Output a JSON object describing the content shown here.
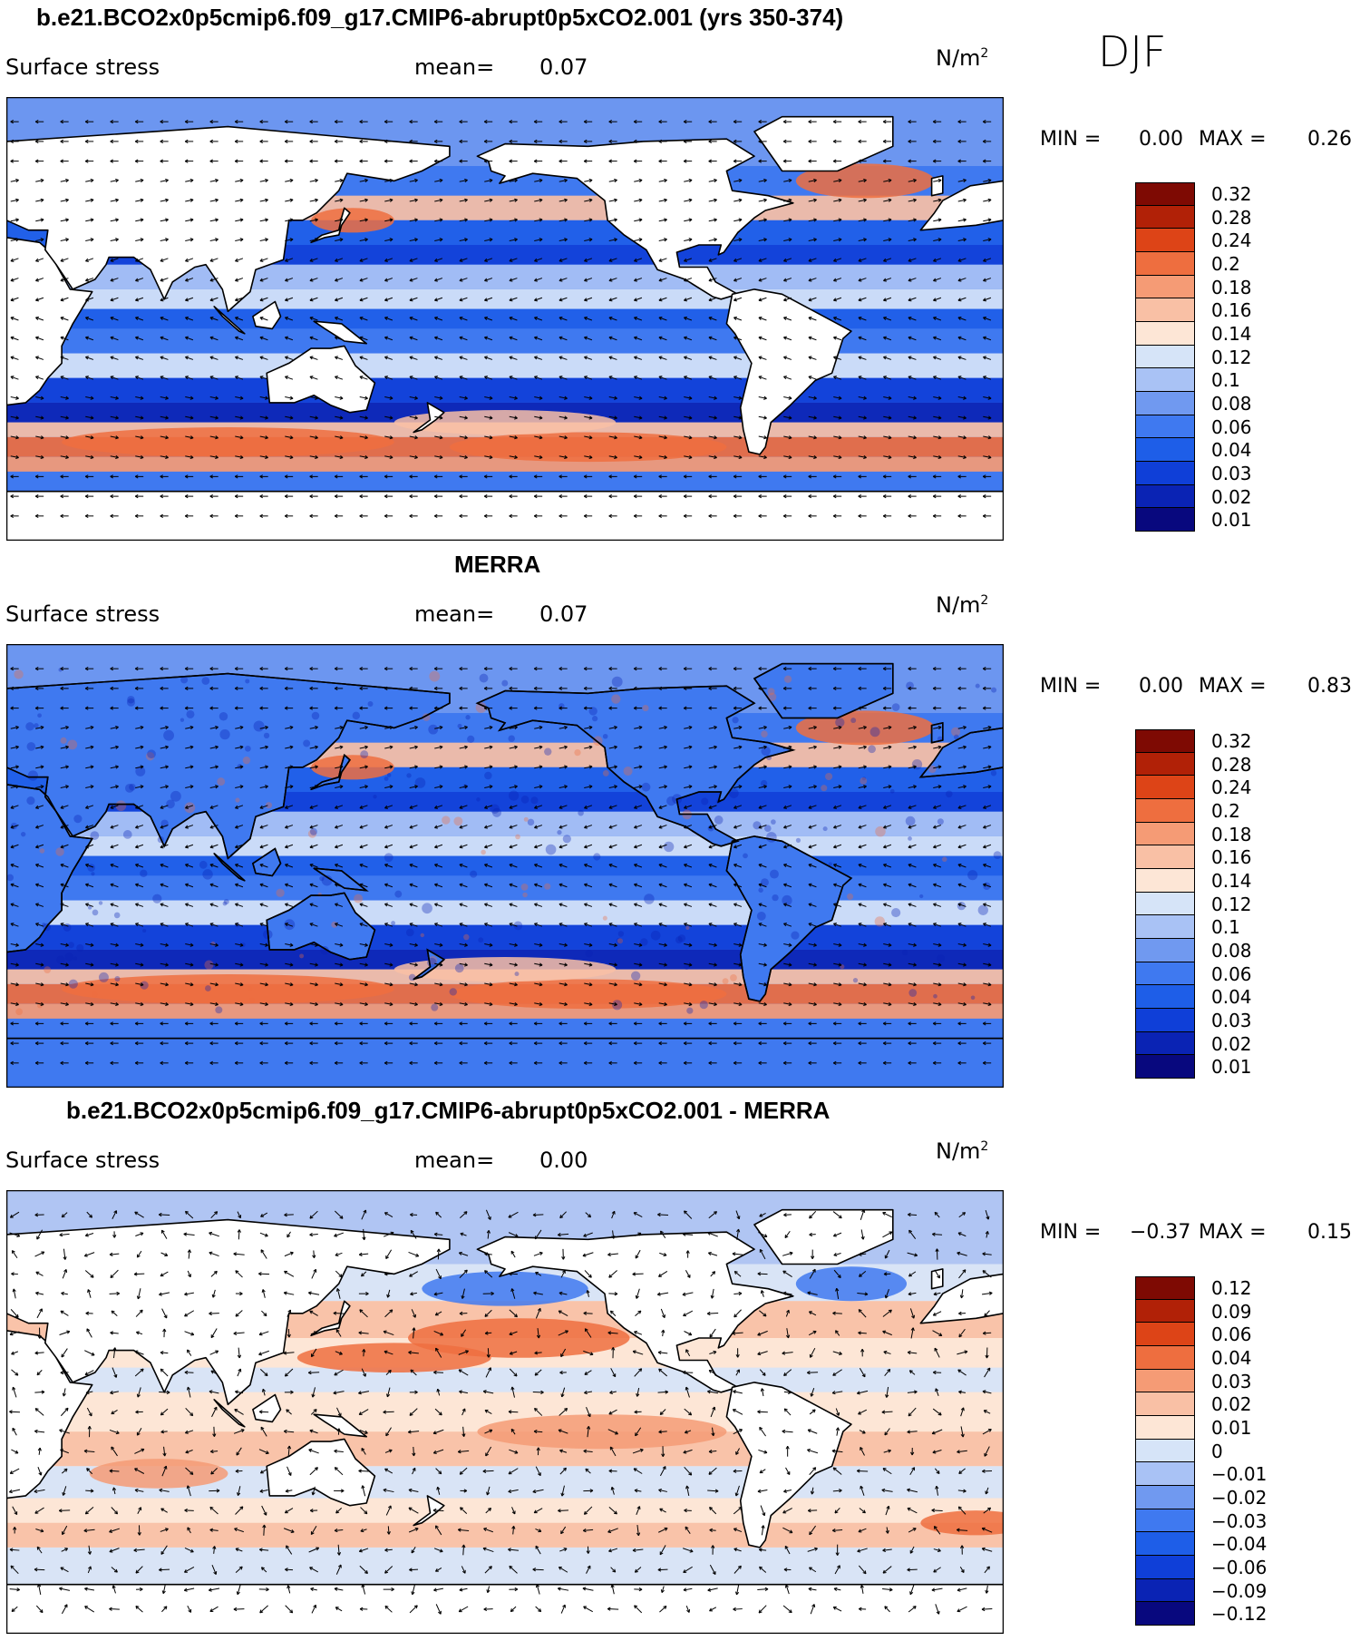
{
  "season": "DJF",
  "colors": {
    "levels": [
      "#08087e",
      "#0a23b4",
      "#0f3fd8",
      "#1e5ee8",
      "#3f79f0",
      "#7099f0",
      "#a9c2f5",
      "#d6e4f8",
      "#fde6d6",
      "#f9c0a5",
      "#f59b75",
      "#ee6e3f",
      "#dd4417",
      "#b12107",
      "#7e0a03"
    ],
    "land": "#ffffff",
    "coast": "#000000"
  },
  "panels": [
    {
      "title": "b.e21.BCO2x0p5cmip6.f09_g17.CMIP6-abrupt0p5xCO2.001 (yrs 350-374)",
      "variable": "Surface stress",
      "mean_label": "mean=",
      "mean_value": "0.07",
      "units": "N/m",
      "units_exp": "2",
      "min_label": "MIN =",
      "min_value": "0.00",
      "max_label": "MAX =",
      "max_value": "0.26"
    },
    {
      "title": "MERRA",
      "variable": "Surface stress",
      "mean_label": "mean=",
      "mean_value": "0.07",
      "units": "N/m",
      "units_exp": "2",
      "min_label": "MIN =",
      "min_value": "0.00",
      "max_label": "MAX =",
      "max_value": "0.83"
    },
    {
      "title": "b.e21.BCO2x0p5cmip6.f09_g17.CMIP6-abrupt0p5xCO2.001 - MERRA",
      "variable": "Surface stress",
      "mean_label": "mean=",
      "mean_value": "0.00",
      "units": "N/m",
      "units_exp": "2",
      "min_label": "MIN =",
      "min_value": "−0.37",
      "max_label": "MAX =",
      "max_value": "0.15"
    }
  ],
  "chart_data": [
    {
      "type": "heatmap",
      "title": "b.e21.BCO2x0p5cmip6.f09_g17.CMIP6-abrupt0p5xCO2.001 (yrs 350-374)",
      "variable": "Surface stress",
      "units": "N/m^2",
      "mean": 0.07,
      "min": 0.0,
      "max": 0.26,
      "levels": [
        0.01,
        0.02,
        0.03,
        0.04,
        0.06,
        0.08,
        0.1,
        0.12,
        0.14,
        0.16,
        0.18,
        0.2,
        0.24,
        0.28,
        0.32
      ],
      "level_labels": [
        "0.01",
        "0.02",
        "0.03",
        "0.04",
        "0.06",
        "0.08",
        "0.1",
        "0.12",
        "0.14",
        "0.16",
        "0.18",
        "0.2",
        "0.24",
        "0.28",
        "0.32"
      ],
      "overlay": "wind stress vectors",
      "projection": "global lon-lat, Pacific-centered",
      "kind": "model"
    },
    {
      "type": "heatmap",
      "title": "MERRA",
      "variable": "Surface stress",
      "units": "N/m^2",
      "mean": 0.07,
      "min": 0.0,
      "max": 0.83,
      "levels": [
        0.01,
        0.02,
        0.03,
        0.04,
        0.06,
        0.08,
        0.1,
        0.12,
        0.14,
        0.16,
        0.18,
        0.2,
        0.24,
        0.28,
        0.32
      ],
      "level_labels": [
        "0.01",
        "0.02",
        "0.03",
        "0.04",
        "0.06",
        "0.08",
        "0.1",
        "0.12",
        "0.14",
        "0.16",
        "0.18",
        "0.2",
        "0.24",
        "0.28",
        "0.32"
      ],
      "overlay": "wind stress vectors",
      "projection": "global lon-lat, Pacific-centered",
      "kind": "obs"
    },
    {
      "type": "heatmap",
      "title": "b.e21.BCO2x0p5cmip6.f09_g17.CMIP6-abrupt0p5xCO2.001 - MERRA",
      "variable": "Surface stress",
      "units": "N/m^2",
      "mean": 0.0,
      "min": -0.37,
      "max": 0.15,
      "levels": [
        -0.12,
        -0.09,
        -0.06,
        -0.04,
        -0.03,
        -0.02,
        -0.01,
        0,
        0.01,
        0.02,
        0.03,
        0.04,
        0.06,
        0.09,
        0.12
      ],
      "level_labels": [
        "−0.12",
        "−0.09",
        "−0.06",
        "−0.04",
        "−0.03",
        "−0.02",
        "−0.01",
        "0",
        "0.01",
        "0.02",
        "0.03",
        "0.04",
        "0.06",
        "0.09",
        "0.12"
      ],
      "overlay": "wind stress difference vectors",
      "projection": "global lon-lat, Pacific-centered",
      "kind": "diff"
    }
  ]
}
